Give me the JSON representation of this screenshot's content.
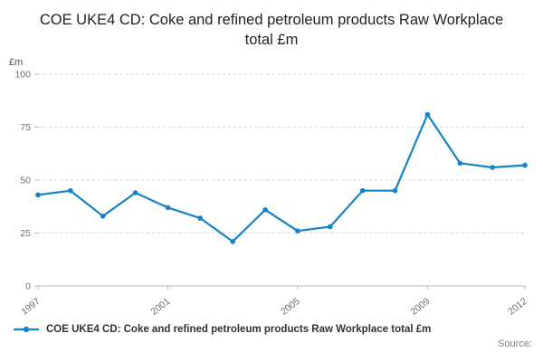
{
  "title": "COE UKE4 CD: Coke and refined petroleum products Raw Workplace total £m",
  "y_axis_unit": "£m",
  "legend": {
    "label": "COE UKE4 CD: Coke and refined petroleum products Raw Workplace total £m"
  },
  "source_label": "Source:",
  "colors": {
    "line": "#1583c5",
    "grid": "#d6d6d6",
    "axis": "#b8b8b8",
    "tick_text": "#707070"
  },
  "chart_data": {
    "type": "line",
    "title": "COE UKE4 CD: Coke and refined petroleum products Raw Workplace total £m",
    "ylabel": "£m",
    "xlabel": "",
    "x": [
      1997,
      1998,
      1999,
      2000,
      2001,
      2002,
      2003,
      2004,
      2005,
      2006,
      2007,
      2008,
      2009,
      2010,
      2011,
      2012
    ],
    "values": [
      43,
      45,
      33,
      44,
      37,
      32,
      21,
      36,
      26,
      28,
      45,
      45,
      81,
      58,
      56,
      57
    ],
    "x_tick_labels": [
      "1997",
      "2001",
      "2005",
      "2009",
      "2012"
    ],
    "x_tick_indices": [
      0,
      4,
      8,
      12,
      15
    ],
    "y_ticks": [
      0,
      25,
      50,
      75,
      100
    ],
    "ylim": [
      0,
      100
    ],
    "grid": "horizontal-dashed",
    "legend_position": "bottom-left"
  }
}
